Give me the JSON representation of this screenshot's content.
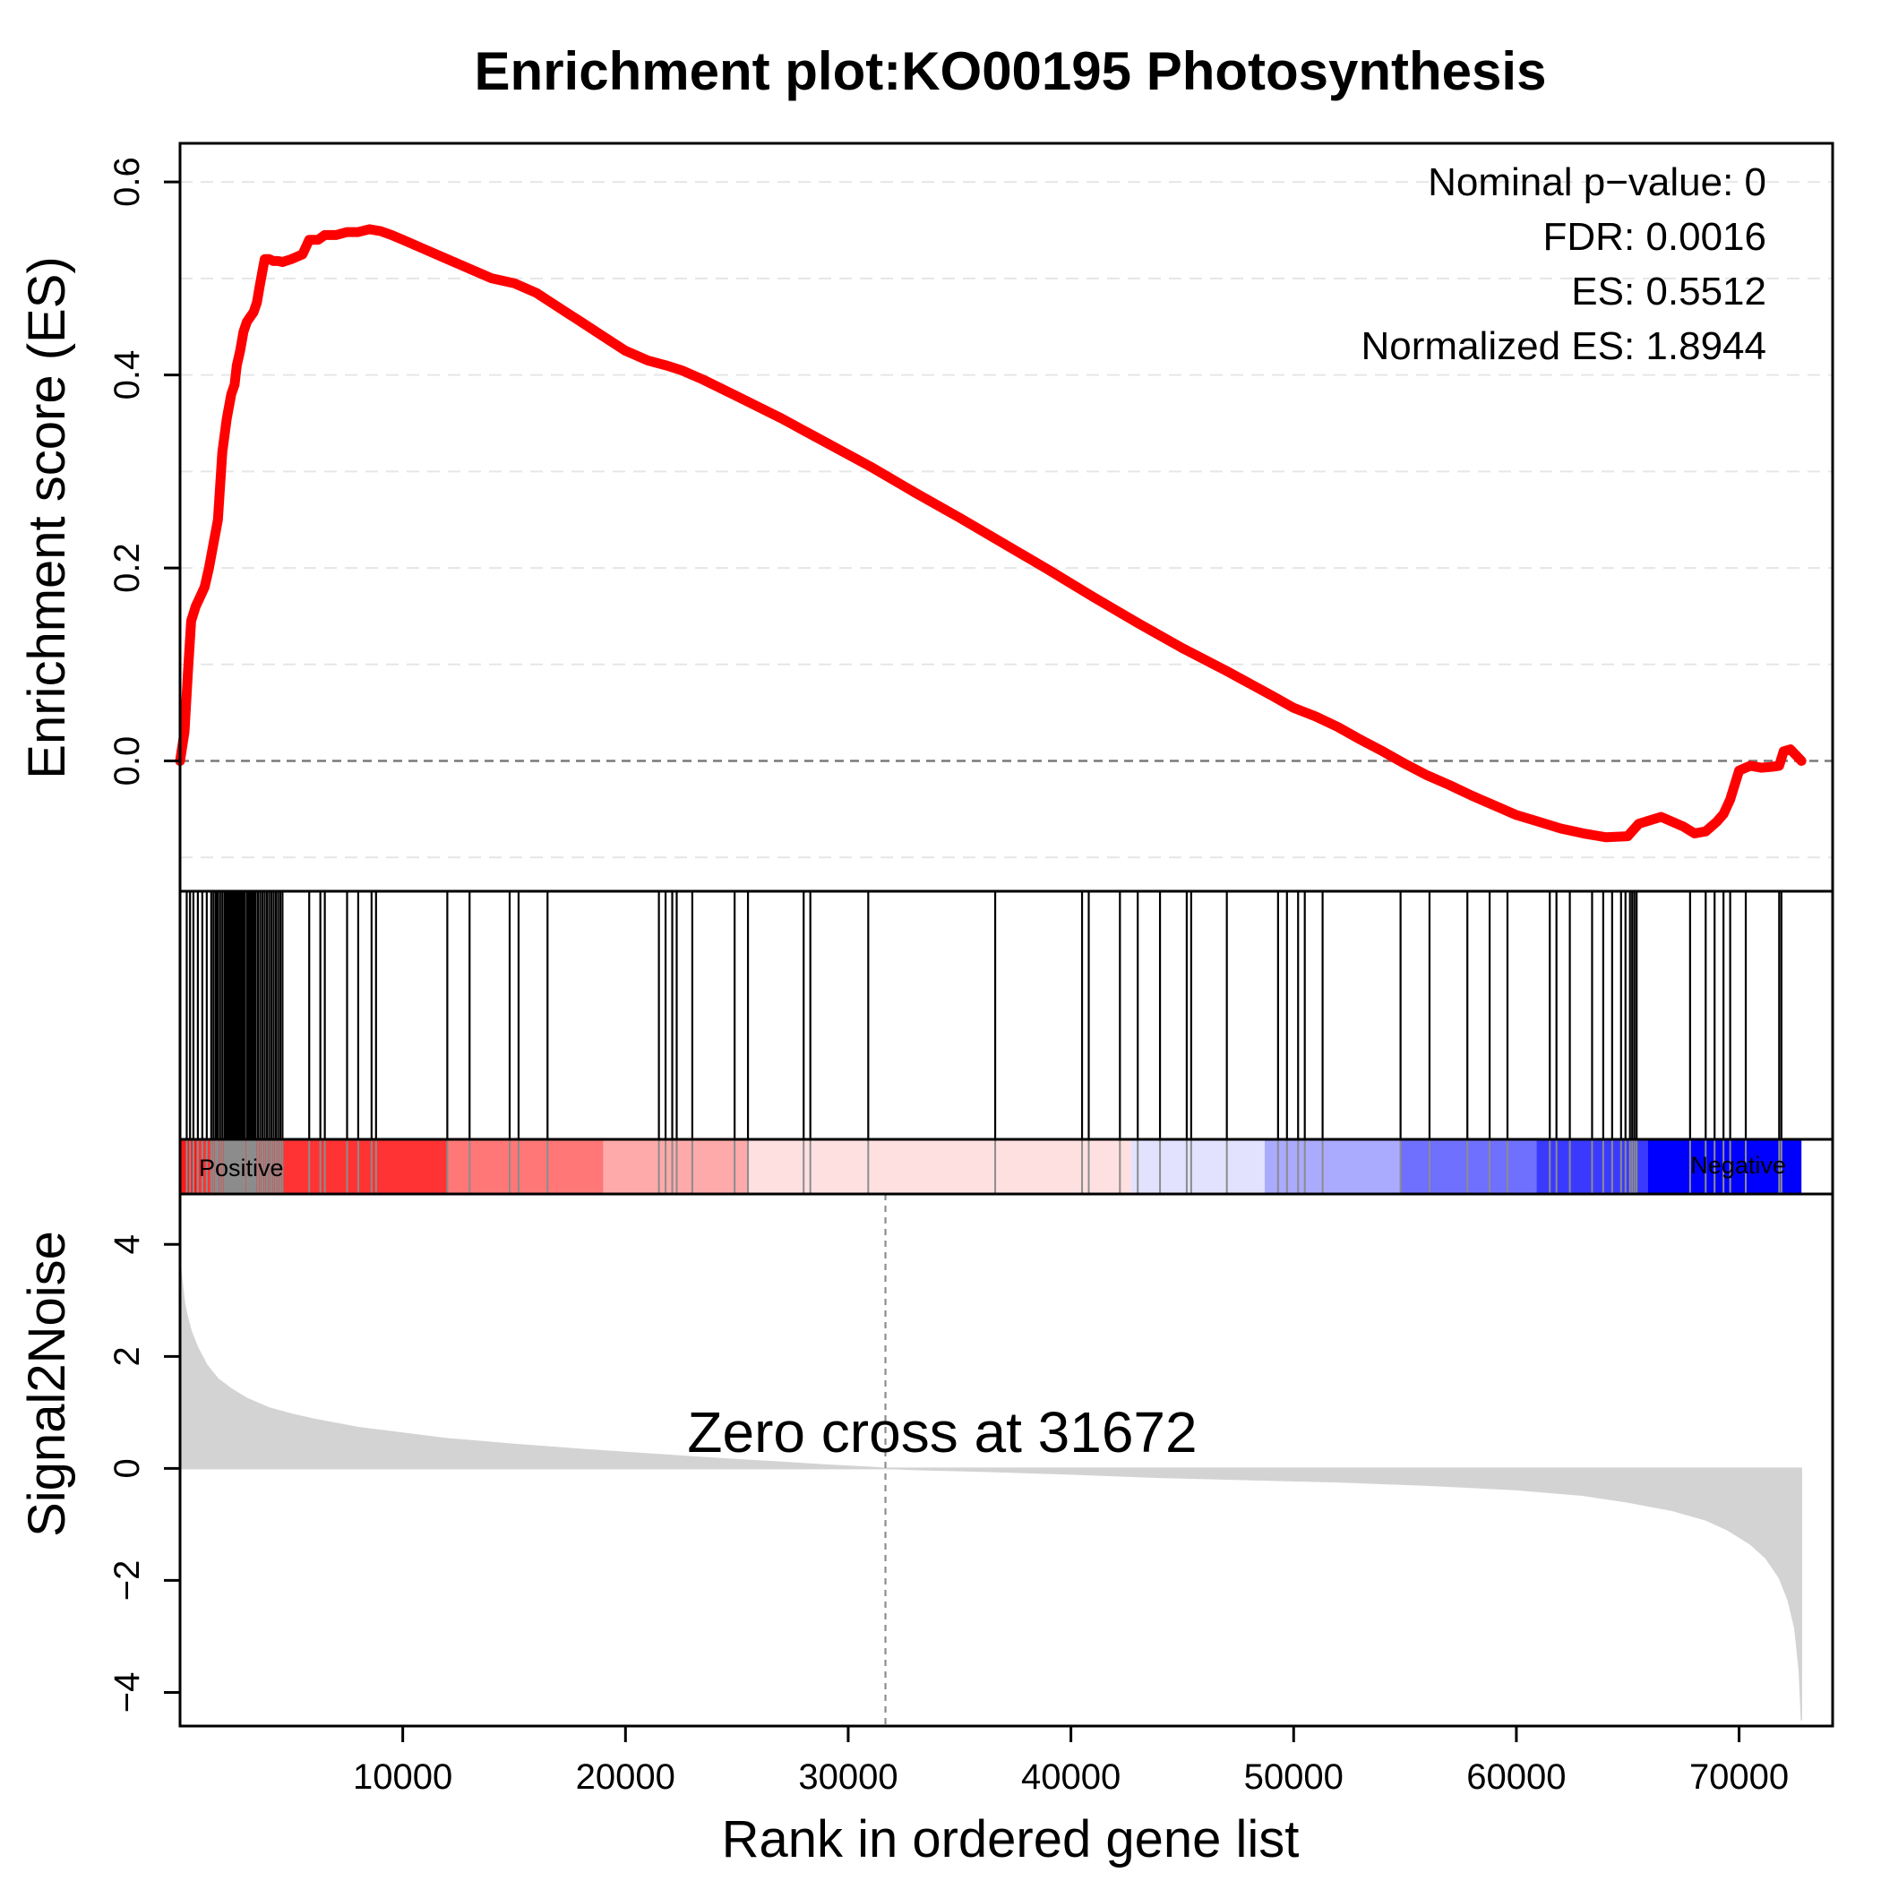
{
  "chart_data": {
    "type": "line",
    "title": "Enrichment plot:KO00195 Photosynthesis",
    "xlabel": "Rank in ordered gene list",
    "n_genes": 72800,
    "xlim": [
      0,
      74200
    ],
    "x_ticks": [
      10000,
      20000,
      30000,
      40000,
      50000,
      60000,
      70000
    ],
    "x_tick_labels": [
      "10000",
      "20000",
      "30000",
      "40000",
      "50000",
      "60000",
      "70000"
    ],
    "es_panel": {
      "ylabel": "Enrichment score (ES)",
      "ylim": [
        -0.135,
        0.64
      ],
      "y_ticks": [
        0.0,
        0.2,
        0.4,
        0.6
      ],
      "y_tick_labels": [
        "0.0",
        "0.2",
        "0.4",
        "0.6"
      ],
      "dashed_gridlines": [
        -0.1,
        0.1,
        0.2,
        0.3,
        0.4,
        0.5,
        0.6
      ],
      "baseline": 0,
      "line_color": "#ff0000",
      "series": [
        {
          "x": [
            0,
            200,
            350,
            500,
            700,
            900,
            1100,
            1300,
            1500,
            1700,
            1900,
            2100,
            2300,
            2450,
            2550,
            2700,
            2850,
            3000,
            3150,
            3300,
            3450,
            3600,
            3800,
            4000,
            4200,
            4400,
            4600,
            5000,
            5500,
            5800,
            6200,
            6500,
            7000,
            7500,
            8000,
            8500,
            9000,
            9500,
            10000,
            11000,
            12000,
            13000,
            14000,
            15000,
            16000,
            17000,
            18000,
            19000,
            20000,
            21000,
            21800,
            22500,
            23500,
            25000,
            27000,
            29000,
            31000,
            33000,
            35000,
            37000,
            39000,
            41000,
            43000,
            45000,
            47000,
            49000,
            50000,
            51000,
            52000,
            53000,
            54000,
            55000,
            56000,
            57000,
            58000,
            59000,
            60000,
            61000,
            62000,
            63000,
            64000,
            65000,
            65500,
            66500,
            67500,
            68000,
            68500,
            69000,
            69300,
            69600,
            70000,
            70500,
            71000,
            71500,
            71800,
            72000,
            72300,
            72800
          ],
          "y": [
            0.0,
            0.03,
            0.09,
            0.145,
            0.16,
            0.17,
            0.18,
            0.2,
            0.225,
            0.25,
            0.32,
            0.355,
            0.38,
            0.39,
            0.41,
            0.425,
            0.445,
            0.455,
            0.46,
            0.465,
            0.475,
            0.495,
            0.52,
            0.52,
            0.518,
            0.518,
            0.517,
            0.52,
            0.525,
            0.54,
            0.54,
            0.545,
            0.545,
            0.548,
            0.548,
            0.551,
            0.549,
            0.545,
            0.54,
            0.53,
            0.52,
            0.51,
            0.5,
            0.495,
            0.485,
            0.47,
            0.455,
            0.44,
            0.425,
            0.415,
            0.41,
            0.405,
            0.395,
            0.378,
            0.355,
            0.33,
            0.305,
            0.278,
            0.252,
            0.225,
            0.198,
            0.17,
            0.143,
            0.117,
            0.093,
            0.068,
            0.055,
            0.046,
            0.035,
            0.022,
            0.01,
            -0.003,
            -0.015,
            -0.025,
            -0.036,
            -0.046,
            -0.056,
            -0.063,
            -0.07,
            -0.075,
            -0.079,
            -0.078,
            -0.065,
            -0.058,
            -0.068,
            -0.075,
            -0.073,
            -0.063,
            -0.055,
            -0.04,
            -0.01,
            -0.005,
            -0.007,
            -0.006,
            -0.005,
            0.01,
            0.012,
            0.0
          ]
        }
      ]
    },
    "stats": [
      "Nominal p−value: 0",
      "FDR: 0.0016",
      "ES: 0.5512",
      "Normalized ES: 1.8944"
    ],
    "hits": [
      300,
      450,
      600,
      800,
      1000,
      1200,
      1400,
      1500,
      1600,
      1650,
      1700,
      1800,
      1900,
      2000,
      2050,
      2100,
      2150,
      2200,
      2250,
      2300,
      2350,
      2400,
      2450,
      2500,
      2550,
      2600,
      2650,
      2700,
      2750,
      2800,
      2850,
      2900,
      3000,
      3050,
      3100,
      3150,
      3200,
      3250,
      3300,
      3350,
      3400,
      3500,
      3600,
      3700,
      3800,
      3900,
      4000,
      4100,
      4200,
      4300,
      4400,
      4500,
      4600,
      5800,
      6300,
      6500,
      7500,
      8000,
      8600,
      8800,
      12000,
      13000,
      14800,
      15200,
      16500,
      21500,
      21800,
      22100,
      22300,
      23000,
      24900,
      25500,
      28000,
      28300,
      30900,
      36600,
      40500,
      40800,
      42200,
      43000,
      44000,
      45200,
      45400,
      47000,
      49300,
      49700,
      50200,
      50500,
      51300,
      54800,
      56100,
      57800,
      58800,
      59600,
      61500,
      61800,
      62400,
      63400,
      63900,
      64300,
      64700,
      64900,
      65100,
      65200,
      65300,
      65400,
      67800,
      68500,
      68900,
      69300,
      69600,
      70300,
      71800,
      71900
    ],
    "colormap": {
      "positive_label": "Positive",
      "negative_label": "Negative",
      "segments": [
        {
          "from": 0,
          "to": 750,
          "color": "#ff1a1a"
        },
        {
          "from": 750,
          "to": 12000,
          "color": "#ff3333"
        },
        {
          "from": 12000,
          "to": 19000,
          "color": "#ff7777"
        },
        {
          "from": 19000,
          "to": 25500,
          "color": "#ffaaaa"
        },
        {
          "from": 25500,
          "to": 42700,
          "color": "#ffe0e0"
        },
        {
          "from": 42700,
          "to": 48700,
          "color": "#e2e2ff"
        },
        {
          "from": 48700,
          "to": 54800,
          "color": "#aaaaff"
        },
        {
          "from": 54800,
          "to": 60900,
          "color": "#7070ff"
        },
        {
          "from": 60900,
          "to": 65900,
          "color": "#3a3aff"
        },
        {
          "from": 65900,
          "to": 72800,
          "color": "#0000ff"
        }
      ]
    },
    "metric_panel": {
      "ylabel": "Signal2Noise",
      "ylim": [
        -4.6,
        4.9
      ],
      "y_ticks": [
        -4,
        -2,
        0,
        2,
        4
      ],
      "y_tick_labels": [
        "−4",
        "−2",
        "0",
        "2",
        "4"
      ],
      "fill_color": "#d3d3d3",
      "zero_cross": 31672,
      "zero_cross_label": "Zero cross at 31672",
      "x": [
        0,
        100,
        200,
        300,
        500,
        800,
        1200,
        1700,
        2300,
        3000,
        4000,
        5000,
        6000,
        8000,
        10000,
        12000,
        15000,
        18000,
        21000,
        24000,
        27000,
        29000,
        31000,
        31672,
        33000,
        36000,
        40000,
        44000,
        48000,
        52000,
        56000,
        60000,
        63000,
        65000,
        67000,
        68500,
        69500,
        70500,
        71200,
        71800,
        72200,
        72500,
        72700,
        72800
      ],
      "values": [
        3.7,
        3.3,
        2.95,
        2.75,
        2.45,
        2.15,
        1.85,
        1.6,
        1.42,
        1.25,
        1.08,
        0.97,
        0.88,
        0.73,
        0.63,
        0.53,
        0.43,
        0.34,
        0.26,
        0.18,
        0.11,
        0.06,
        0.02,
        0.0,
        -0.02,
        -0.05,
        -0.1,
        -0.16,
        -0.2,
        -0.24,
        -0.3,
        -0.38,
        -0.48,
        -0.6,
        -0.75,
        -0.92,
        -1.1,
        -1.35,
        -1.6,
        -1.95,
        -2.35,
        -2.85,
        -3.6,
        -4.5
      ]
    }
  }
}
